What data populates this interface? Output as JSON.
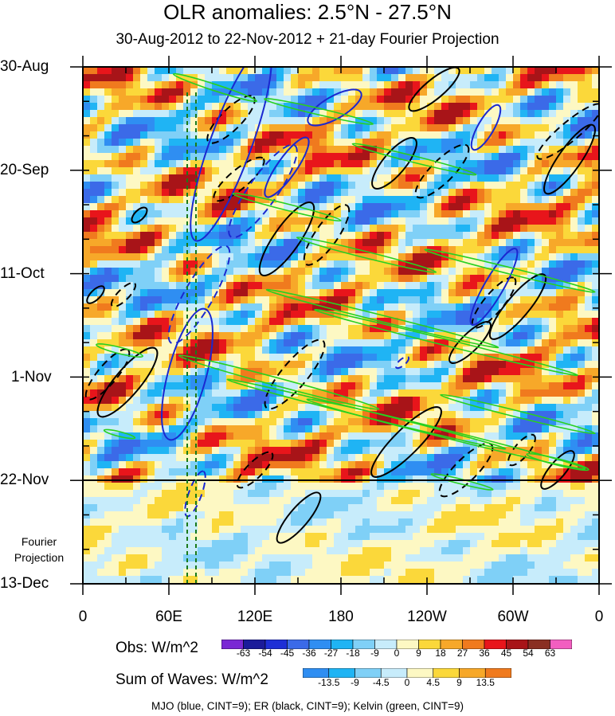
{
  "chart_data": {
    "type": "heatmap",
    "title": "OLR anomalies: 2.5°N - 27.5°N",
    "subtitle": "30-Aug-2012 to 22-Nov-2012 + 21-day Fourier Projection",
    "y_tick_labels": [
      "30-Aug",
      "20-Sep",
      "11-Oct",
      "1-Nov",
      "22-Nov",
      "13-Dec"
    ],
    "y_ticks_days": [
      0,
      21,
      42,
      63,
      84,
      105
    ],
    "x_tick_labels": [
      "0",
      "60E",
      "120E",
      "180",
      "120W",
      "60W",
      "0"
    ],
    "x_ticks_lon": [
      0,
      60,
      120,
      180,
      240,
      300,
      360
    ],
    "projection_label": "Fourier Projection",
    "obs_colorbar": {
      "label": "Obs: W/m^2",
      "levels": [
        "-63",
        "-54",
        "-45",
        "-36",
        "-27",
        "-18",
        "-9",
        "0",
        "9",
        "18",
        "27",
        "36",
        "45",
        "54",
        "63"
      ],
      "colors": [
        "#7a28d4",
        "#1b1b9a",
        "#1e2fd6",
        "#3b6ae8",
        "#2f8ef2",
        "#1fb4f4",
        "#7fd0f7",
        "#c7ecfb",
        "#fdf8c3",
        "#fbd83a",
        "#f7a829",
        "#f07a1e",
        "#e8151b",
        "#a81418",
        "#8a2f22",
        "#f25ec0"
      ]
    },
    "waves_colorbar": {
      "label": "Sum of Waves: W/m^2",
      "levels": [
        "-13.5",
        "-9",
        "-4.5",
        "0",
        "4.5",
        "9",
        "13.5"
      ],
      "colors": [
        "#2f8ef2",
        "#1fb4f4",
        "#7fd0f7",
        "#c7ecfb",
        "#fdf8c3",
        "#fbd83a",
        "#f7a829",
        "#f07a1e"
      ]
    },
    "contours_legend": "MJO (blue, CINT=9); ER (black, CINT=9); Kelvin (green, CINT=9)",
    "series_colors": {
      "mjo": "#1a28d0",
      "er": "#000000",
      "kelvin": "#28d020",
      "reference_lines": "#1a7a1a"
    }
  }
}
